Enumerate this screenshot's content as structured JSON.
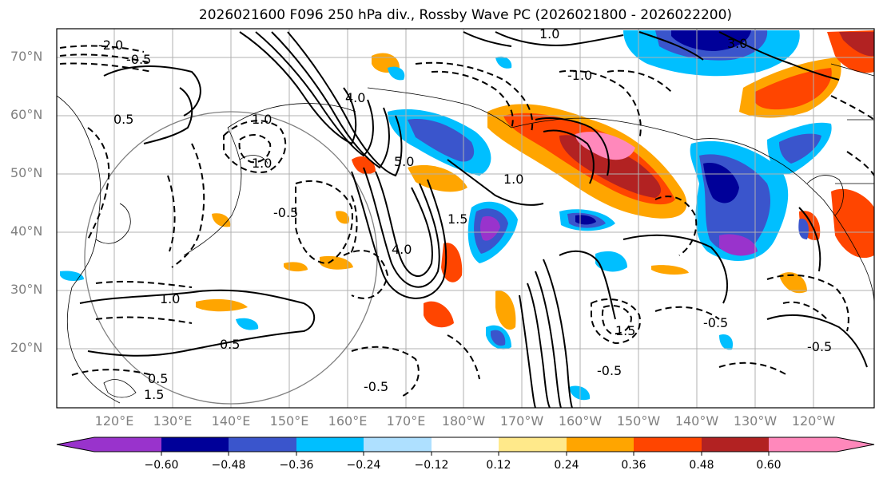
{
  "title": "2026021600 F096 250 hPa div., Rossby Wave PC (2026021800 - 2026022200)",
  "lat_labels": [
    "70°N",
    "60°N",
    "50°N",
    "40°N",
    "30°N",
    "20°N"
  ],
  "lon_labels": [
    "120°E",
    "130°E",
    "140°E",
    "150°E",
    "160°E",
    "170°E",
    "180°W",
    "170°W",
    "160°W",
    "150°W",
    "140°W",
    "130°W",
    "120°W"
  ],
  "colorbar": {
    "colors": [
      "#9933cc",
      "#000099",
      "#3a55cc",
      "#00bfff",
      "#aee0ff",
      "#ffffff",
      "#ffe98a",
      "#ffa500",
      "#ff4500",
      "#b22222",
      "#ff88bb"
    ],
    "tick_labels": [
      "−0.60",
      "−0.48",
      "−0.36",
      "−0.24",
      "−0.12",
      "0.12",
      "0.24",
      "0.36",
      "0.48",
      "0.60"
    ]
  },
  "contour_labels": [
    "-2.0",
    "-0.5",
    "1.0",
    "4.0",
    "3.0",
    "-1.0",
    "0.5",
    "-0.5",
    "1.0",
    "5.0",
    "1.0",
    "4.0",
    "-0.5",
    "0.5",
    "-0.5",
    "-0.5",
    "1.5",
    "1.5",
    "1.0",
    "1.5",
    "-0.5",
    "1.0",
    "0.5"
  ],
  "colors": {
    "gridline": "#b0b0b0",
    "axis_label": "#808080",
    "coastline": "#000000"
  }
}
